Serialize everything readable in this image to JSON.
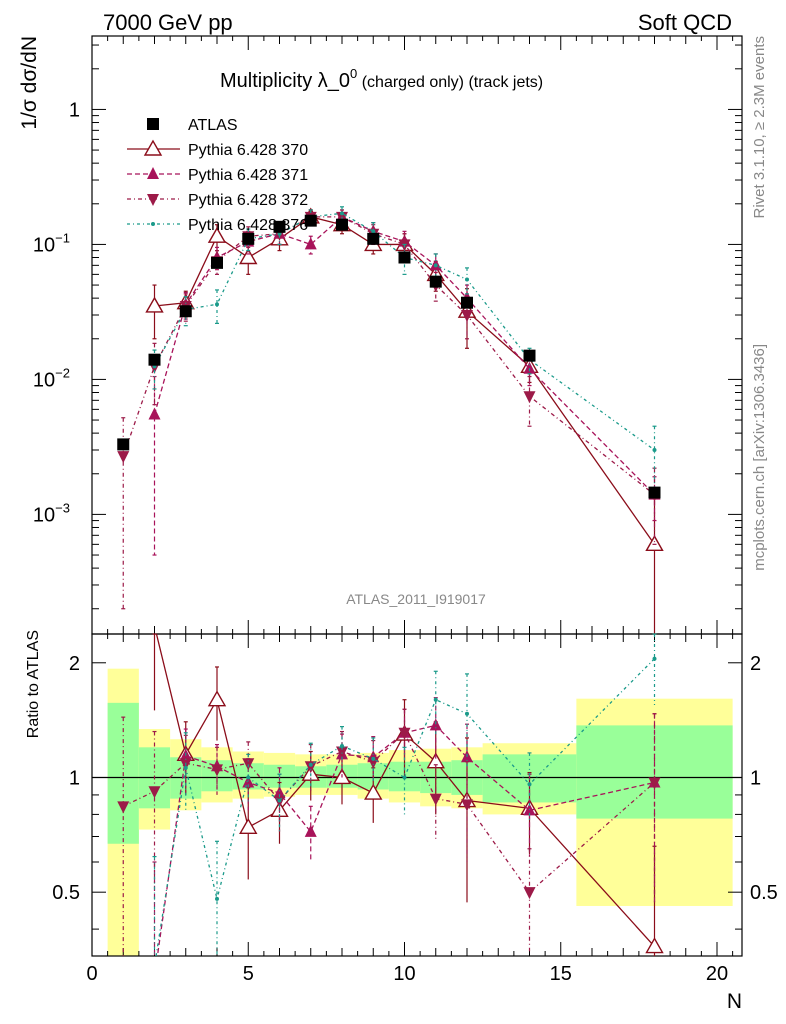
{
  "header": {
    "left": "7000 GeV pp",
    "right": "Soft QCD",
    "side_top": "Rivet 3.1.10, ≥ 2.3M events",
    "side_bottom": "mcplots.cern.ch [arXiv:1306.3436]",
    "watermark": "ATLAS_2011_I919017"
  },
  "chart_data": {
    "type": "line",
    "title_main": "Multiplicity λ_0",
    "title_sup": "0",
    "title_tail": " (charged only) (track jets)",
    "xlabel": "N",
    "ylabel_top": "1/σ dσ/dN",
    "ylabel_bottom": "Ratio to ATLAS",
    "xlim": [
      0,
      20.8
    ],
    "top_ylim": [
      0.00013,
      3.5
    ],
    "top_yscale": "log",
    "bottom_ylim": [
      0.34,
      2.38
    ],
    "bottom_yscale": "log",
    "x_ticks": [
      "0",
      "5",
      "10",
      "15",
      "20"
    ],
    "top_y_ticks": [
      {
        "mant": "10",
        "exp": "−3",
        "value": 0.001
      },
      {
        "mant": "10",
        "exp": "−2",
        "value": 0.01
      },
      {
        "mant": "10",
        "exp": "−1",
        "value": 0.1
      },
      {
        "mant": "1",
        "exp": "",
        "value": 1
      }
    ],
    "bottom_y_ticks": [
      {
        "label": "0.5",
        "value": 0.5
      },
      {
        "label": "1",
        "value": 1
      },
      {
        "label": "2",
        "value": 2
      }
    ],
    "legend_position": "top-left",
    "x": [
      1,
      2,
      3,
      4,
      5,
      6,
      7,
      8,
      9,
      10,
      11,
      12,
      14,
      18
    ],
    "bins": [
      [
        0.5,
        1.5
      ],
      [
        1.5,
        2.5
      ],
      [
        2.5,
        3.5
      ],
      [
        3.5,
        4.5
      ],
      [
        4.5,
        5.5
      ],
      [
        5.5,
        6.5
      ],
      [
        6.5,
        7.5
      ],
      [
        7.5,
        8.5
      ],
      [
        8.5,
        9.5
      ],
      [
        9.5,
        10.5
      ],
      [
        10.5,
        11.5
      ],
      [
        11.5,
        12.5
      ],
      [
        12.5,
        15.5
      ],
      [
        15.5,
        20.5
      ]
    ],
    "atlas": {
      "name": "ATLAS",
      "color": "#000000",
      "values": [
        0.0033,
        0.014,
        0.032,
        0.073,
        0.11,
        0.135,
        0.15,
        0.14,
        0.11,
        0.08,
        0.053,
        0.037,
        0.015,
        0.00145
      ]
    },
    "band_green": [
      [
        0.67,
        1.57
      ],
      [
        0.83,
        1.2
      ],
      [
        0.88,
        1.13
      ],
      [
        0.92,
        1.11
      ],
      [
        0.93,
        1.09
      ],
      [
        0.94,
        1.08
      ],
      [
        0.94,
        1.07
      ],
      [
        0.94,
        1.08
      ],
      [
        0.93,
        1.09
      ],
      [
        0.92,
        1.1
      ],
      [
        0.91,
        1.1
      ],
      [
        0.9,
        1.11
      ],
      [
        0.86,
        1.15
      ],
      [
        0.78,
        1.37
      ]
    ],
    "band_yellow": [
      [
        0.34,
        1.93
      ],
      [
        0.73,
        1.34
      ],
      [
        0.82,
        1.26
      ],
      [
        0.86,
        1.2
      ],
      [
        0.88,
        1.17
      ],
      [
        0.89,
        1.16
      ],
      [
        0.9,
        1.15
      ],
      [
        0.9,
        1.15
      ],
      [
        0.88,
        1.16
      ],
      [
        0.86,
        1.18
      ],
      [
        0.84,
        1.19
      ],
      [
        0.83,
        1.2
      ],
      [
        0.8,
        1.23
      ],
      [
        0.46,
        1.61
      ]
    ],
    "series": [
      {
        "name": "Pythia 6.428 370",
        "color": "#8b0d1a",
        "dash": "",
        "marker": "triangle-up-open",
        "values": [
          null,
          0.035,
          0.037,
          0.115,
          0.08,
          0.11,
          0.16,
          0.14,
          0.1,
          0.1,
          0.06,
          0.032,
          0.0125,
          0.0006
        ],
        "errors": [
          null,
          0.015,
          0.008,
          0.025,
          0.02,
          0.02,
          0.02,
          0.02,
          0.015,
          0.02,
          0.015,
          0.015,
          0.003,
          0.0008
        ],
        "ratio": [
          null,
          2.5,
          1.15,
          1.6,
          0.74,
          0.82,
          1.02,
          1.0,
          0.91,
          1.3,
          1.1,
          0.87,
          0.83,
          0.36
        ],
        "ratio_errors": [
          null,
          1.0,
          0.25,
          0.35,
          0.2,
          0.15,
          0.15,
          0.15,
          0.15,
          0.3,
          0.3,
          0.4,
          0.2,
          0.3
        ]
      },
      {
        "name": "Pythia 6.428 371",
        "color": "#a8135a",
        "dash": "5,3",
        "marker": "triangle-up-filled",
        "values": [
          null,
          0.0055,
          0.036,
          0.08,
          0.105,
          0.12,
          0.1,
          0.16,
          0.125,
          0.105,
          0.07,
          0.04,
          0.012,
          0.0014
        ],
        "errors": [
          null,
          0.005,
          0.008,
          0.015,
          0.02,
          0.02,
          0.015,
          0.02,
          0.02,
          0.02,
          0.015,
          0.01,
          0.003,
          0.0005
        ],
        "ratio": [
          null,
          0.3,
          1.14,
          1.07,
          0.97,
          0.91,
          0.72,
          1.15,
          1.13,
          1.31,
          1.37,
          1.13,
          0.82,
          0.97
        ],
        "ratio_errors": [
          null,
          0.3,
          0.2,
          0.15,
          0.15,
          0.15,
          0.12,
          0.15,
          0.15,
          0.2,
          0.25,
          0.25,
          0.2,
          0.5
        ]
      },
      {
        "name": "Pythia 6.428 372",
        "color": "#9c1a48",
        "dash": "4,3,1,3",
        "marker": "triangle-down-filled",
        "values": [
          0.0027,
          0.0125,
          0.035,
          0.075,
          0.115,
          0.12,
          0.16,
          0.16,
          0.12,
          0.1,
          0.05,
          0.03,
          0.0075,
          0.0014
        ],
        "errors": [
          0.0025,
          0.006,
          0.008,
          0.015,
          0.02,
          0.02,
          0.02,
          0.02,
          0.02,
          0.02,
          0.012,
          0.01,
          0.003,
          0.0008
        ],
        "ratio": [
          0.84,
          0.92,
          1.09,
          1.05,
          1.09,
          0.87,
          1.07,
          1.17,
          1.1,
          1.31,
          0.88,
          0.85,
          0.5,
          0.97
        ],
        "ratio_errors": [
          0.6,
          0.4,
          0.2,
          0.15,
          0.15,
          0.15,
          0.15,
          0.15,
          0.15,
          0.2,
          0.2,
          0.25,
          0.15,
          0.5
        ]
      },
      {
        "name": "Pythia 6.428 376",
        "color": "#1a9a8a",
        "dash": "3,3,1,3",
        "marker": "dot",
        "values": [
          null,
          0.0125,
          0.033,
          0.036,
          0.11,
          0.12,
          0.16,
          0.17,
          0.125,
          0.08,
          0.07,
          0.055,
          0.014,
          0.003
        ],
        "errors": [
          null,
          0.004,
          0.008,
          0.01,
          0.02,
          0.02,
          0.02,
          0.02,
          0.02,
          0.02,
          0.015,
          0.012,
          0.003,
          0.0015
        ],
        "ratio": [
          null,
          0.32,
          1.06,
          0.48,
          1.0,
          0.87,
          1.08,
          1.21,
          1.12,
          1.0,
          1.6,
          1.47,
          0.96,
          2.05
        ],
        "ratio_errors": [
          null,
          0.3,
          0.25,
          0.2,
          0.15,
          0.15,
          0.15,
          0.15,
          0.15,
          0.2,
          0.3,
          0.4,
          0.2,
          0.5
        ]
      }
    ]
  }
}
